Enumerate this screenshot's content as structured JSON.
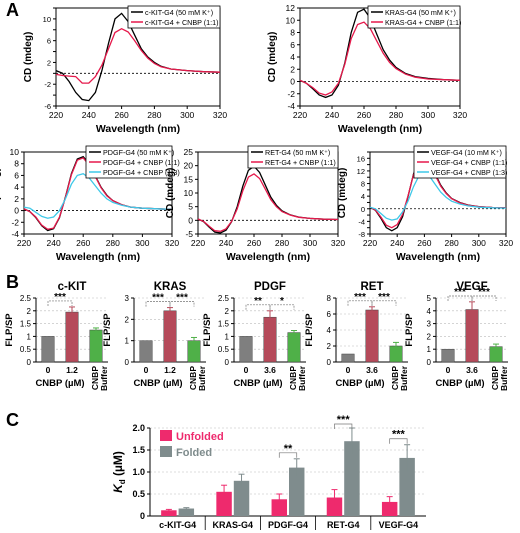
{
  "panel_labels": {
    "a": "A",
    "b": "B",
    "c": "C"
  },
  "colors": {
    "black": "#000000",
    "red": "#e6194b",
    "cyan": "#3ec8e8",
    "bar_dark_grey": "#7f7f7f",
    "bar_red": "#b54a5a",
    "bar_green": "#4fb048",
    "unfolded": "#ee2a6d",
    "folded": "#7f8c8d"
  },
  "chart_data": [
    {
      "type": "line",
      "panel": "A",
      "xlabel": "Wavelength (nm)",
      "ylabel": "CD (mdeg)",
      "xlim": [
        220,
        320
      ],
      "ylim": [
        -6,
        12
      ],
      "xticks": [
        220,
        240,
        260,
        280,
        300,
        320
      ],
      "yticks": [
        -6,
        -4,
        -2,
        0,
        2,
        4,
        6,
        8,
        10,
        12
      ],
      "series": [
        {
          "name": "c-KIT-G4 (50 mM K⁺)",
          "color": "black",
          "x": [
            220,
            224,
            228,
            232,
            236,
            240,
            244,
            248,
            252,
            256,
            260,
            264,
            268,
            272,
            276,
            280,
            284,
            290,
            300,
            310,
            320
          ],
          "y": [
            0.5,
            0,
            -1.5,
            -3.5,
            -4.8,
            -5.0,
            -3.5,
            0.5,
            5.5,
            10,
            11,
            9.5,
            7,
            4.5,
            3,
            2,
            1.3,
            0.8,
            0.5,
            0.3,
            0.2
          ]
        },
        {
          "name": "c-KIT-G4 + CNBP (1:1)",
          "color": "red",
          "x": [
            220,
            224,
            228,
            232,
            236,
            240,
            244,
            248,
            252,
            256,
            260,
            264,
            268,
            272,
            276,
            280,
            284,
            290,
            300,
            310,
            320
          ],
          "y": [
            -0.2,
            -0.4,
            -0.5,
            -0.6,
            -1.8,
            -1.8,
            -0.6,
            1.5,
            4.5,
            7.5,
            8.2,
            7.6,
            6,
            4.2,
            2.8,
            1.8,
            1.2,
            0.8,
            0.5,
            0.3,
            0.2
          ]
        }
      ]
    },
    {
      "type": "line",
      "panel": "A",
      "xlabel": "Wavelength (nm)",
      "ylabel": "CD (mdeg)",
      "xlim": [
        220,
        320
      ],
      "ylim": [
        -4,
        12
      ],
      "xticks": [
        220,
        240,
        260,
        280,
        300,
        320
      ],
      "yticks": [
        -4,
        -2,
        0,
        2,
        4,
        6,
        8,
        10,
        12
      ],
      "series": [
        {
          "name": "KRAS-G4 (50 mM K⁺)",
          "color": "black",
          "x": [
            220,
            224,
            228,
            232,
            236,
            240,
            244,
            248,
            252,
            256,
            260,
            264,
            268,
            272,
            276,
            280,
            286,
            292,
            300,
            310,
            320
          ],
          "y": [
            0.2,
            -0.3,
            -1.2,
            -2.2,
            -2.6,
            -2.2,
            -0.6,
            3,
            8,
            11.3,
            11.8,
            10.3,
            7.7,
            5.2,
            3.5,
            2.3,
            1.3,
            0.8,
            0.5,
            0.3,
            0.2
          ]
        },
        {
          "name": "KRAS-G4 + CNBP (1:1)",
          "color": "red",
          "x": [
            220,
            224,
            228,
            232,
            236,
            240,
            244,
            248,
            252,
            256,
            260,
            264,
            268,
            272,
            276,
            280,
            286,
            292,
            300,
            310,
            320
          ],
          "y": [
            0.2,
            -0.3,
            -1,
            -1.9,
            -2.2,
            -1.7,
            -0.3,
            2.8,
            7,
            9.3,
            9.7,
            8.6,
            6.6,
            4.6,
            3.1,
            2.1,
            1.2,
            0.7,
            0.4,
            0.3,
            0.2
          ]
        }
      ]
    },
    {
      "type": "line",
      "panel": "A",
      "xlabel": "Wavelength (nm)",
      "ylabel": "CD (mdeg)",
      "xlim": [
        220,
        320
      ],
      "ylim": [
        -4,
        10
      ],
      "xticks": [
        220,
        240,
        260,
        280,
        300,
        320
      ],
      "yticks": [
        -4,
        -2,
        0,
        2,
        4,
        6,
        8,
        10
      ],
      "series": [
        {
          "name": "PDGF-G4 (50 mM K⁺)",
          "color": "black",
          "x": [
            220,
            224,
            228,
            232,
            236,
            240,
            244,
            248,
            252,
            256,
            260,
            264,
            268,
            272,
            276,
            280,
            286,
            292,
            300,
            310,
            320
          ],
          "y": [
            0.3,
            -0.2,
            -1.2,
            -2.6,
            -3.4,
            -3.1,
            -1.2,
            2.3,
            6.3,
            8.8,
            9.2,
            8,
            6,
            4,
            2.6,
            1.7,
            1,
            0.6,
            0.4,
            0.3,
            0.2
          ]
        },
        {
          "name": "PDGF-G4 + CNBP (1:1)",
          "color": "red",
          "x": [
            220,
            224,
            228,
            232,
            236,
            240,
            244,
            248,
            252,
            256,
            260,
            264,
            268,
            272,
            276,
            280,
            286,
            292,
            300,
            310,
            320
          ],
          "y": [
            0.3,
            -0.2,
            -1.1,
            -2.5,
            -3.2,
            -3,
            -1.1,
            2.2,
            6.1,
            8.6,
            9,
            7.8,
            5.9,
            3.9,
            2.5,
            1.7,
            1,
            0.6,
            0.4,
            0.3,
            0.2
          ]
        },
        {
          "name": "PDGF-G4 + CNBP (1:3)",
          "color": "cyan",
          "x": [
            220,
            224,
            228,
            232,
            236,
            240,
            244,
            248,
            252,
            256,
            260,
            264,
            268,
            272,
            276,
            280,
            286,
            292,
            300,
            310,
            320
          ],
          "y": [
            0.6,
            0.4,
            -0.3,
            -1,
            -1.3,
            -1.1,
            0,
            2,
            4.5,
            6,
            6.3,
            5.6,
            4.3,
            3,
            2,
            1.4,
            0.9,
            0.6,
            0.4,
            0.3,
            0.2
          ]
        }
      ]
    },
    {
      "type": "line",
      "panel": "A",
      "xlabel": "Wavelength (nm)",
      "ylabel": "CD (mdeg)",
      "xlim": [
        220,
        320
      ],
      "ylim": [
        -5,
        25
      ],
      "xticks": [
        220,
        240,
        260,
        280,
        300,
        320
      ],
      "yticks": [
        -5,
        0,
        5,
        10,
        15,
        20,
        25
      ],
      "series": [
        {
          "name": "RET-G4 (50 mM K⁺)",
          "color": "black",
          "x": [
            220,
            224,
            228,
            232,
            236,
            240,
            244,
            248,
            252,
            256,
            260,
            264,
            268,
            272,
            276,
            280,
            286,
            292,
            300,
            310,
            320
          ],
          "y": [
            0.5,
            -0.5,
            -2.5,
            -4.3,
            -4.6,
            -3.6,
            -0.5,
            5,
            12.5,
            18.3,
            19.8,
            17.5,
            13,
            8.5,
            5.5,
            3.5,
            2,
            1.2,
            0.7,
            0.4,
            0.3
          ]
        },
        {
          "name": "RET-G4 + CNBP (1:1)",
          "color": "red",
          "x": [
            220,
            224,
            228,
            232,
            236,
            240,
            244,
            248,
            252,
            256,
            260,
            264,
            268,
            272,
            276,
            280,
            286,
            292,
            300,
            310,
            320
          ],
          "y": [
            0.5,
            -0.4,
            -2.2,
            -3.8,
            -4,
            -3.1,
            -0.4,
            4.2,
            10.8,
            15.8,
            17,
            15.3,
            11.5,
            7.6,
            5,
            3.2,
            1.9,
            1.1,
            0.7,
            0.4,
            0.3
          ]
        }
      ]
    },
    {
      "type": "line",
      "panel": "A",
      "xlabel": "Wavelength (nm)",
      "ylabel": "CD (mdeg)",
      "xlim": [
        220,
        320
      ],
      "ylim": [
        -8,
        18
      ],
      "xticks": [
        220,
        240,
        260,
        280,
        300,
        320
      ],
      "yticks": [
        -8,
        -6,
        -4,
        -2,
        0,
        2,
        4,
        6,
        8,
        10,
        12,
        14,
        16,
        18
      ],
      "series": [
        {
          "name": "VEGF-G4 (10 mM K⁺)",
          "color": "black",
          "x": [
            220,
            224,
            228,
            232,
            236,
            240,
            244,
            248,
            252,
            256,
            260,
            264,
            268,
            272,
            276,
            280,
            286,
            292,
            300,
            310,
            320
          ],
          "y": [
            0.5,
            -0.5,
            -3,
            -6,
            -7,
            -6,
            -2.5,
            4,
            11,
            15.5,
            16.5,
            14.5,
            11,
            7.5,
            5,
            3.3,
            2,
            1.2,
            0.7,
            0.4,
            0.3
          ]
        },
        {
          "name": "VEGF-G4 + CNBP (1:1)",
          "color": "red",
          "x": [
            220,
            224,
            228,
            232,
            236,
            240,
            244,
            248,
            252,
            256,
            260,
            264,
            268,
            272,
            276,
            280,
            286,
            292,
            300,
            310,
            320
          ],
          "y": [
            0.5,
            -0.4,
            -2.6,
            -5.2,
            -6,
            -5,
            -1.8,
            4.2,
            10.8,
            15,
            16,
            14,
            10.6,
            7.2,
            4.8,
            3.2,
            1.9,
            1.1,
            0.7,
            0.4,
            0.3
          ]
        },
        {
          "name": "VEGF-G4 + CNBP (1:3)",
          "color": "cyan",
          "x": [
            220,
            224,
            228,
            232,
            236,
            240,
            244,
            248,
            252,
            256,
            260,
            264,
            268,
            272,
            276,
            280,
            286,
            292,
            300,
            310,
            320
          ],
          "y": [
            0.5,
            0,
            -1.5,
            -3,
            -3.6,
            -3.2,
            -1,
            2.5,
            7,
            10.5,
            11.5,
            10.2,
            7.7,
            5.3,
            3.6,
            2.4,
            1.5,
            0.9,
            0.5,
            0.3,
            0.2
          ]
        }
      ]
    },
    {
      "type": "bar",
      "panel": "B",
      "title": "c-KIT",
      "ylabel": "FLP/SP",
      "xlabel": "CNBP (µM)",
      "ylim": [
        0,
        2.5
      ],
      "yticks": [
        0,
        0.5,
        1,
        1.5,
        2,
        2.5
      ],
      "yticklabels": [
        "0",
        "0.5",
        "1",
        "1.5",
        "2",
        "2.5"
      ],
      "categories": [
        "0",
        "1.2",
        "CNBP Buffer"
      ],
      "values": [
        1.0,
        1.95,
        1.25
      ],
      "errors": [
        0,
        0.2,
        0.08
      ],
      "bar_colors": [
        "bar_dark_grey",
        "bar_red",
        "bar_green"
      ],
      "significance": [
        {
          "from": 0,
          "to": 1,
          "label": "***"
        }
      ]
    },
    {
      "type": "bar",
      "panel": "B",
      "title": "KRAS",
      "ylabel": "FLP/SP",
      "xlabel": "CNBP (µM)",
      "ylim": [
        0,
        3
      ],
      "yticks": [
        0,
        1,
        2,
        3
      ],
      "yticklabels": [
        "0",
        "1",
        "2",
        "3"
      ],
      "categories": [
        "0",
        "1.2",
        "CNBP Buffer"
      ],
      "values": [
        1.0,
        2.4,
        1.0
      ],
      "errors": [
        0,
        0.15,
        0.15
      ],
      "bar_colors": [
        "bar_dark_grey",
        "bar_red",
        "bar_green"
      ],
      "significance": [
        {
          "from": 0,
          "to": 1,
          "label": "***"
        },
        {
          "from": 1,
          "to": 2,
          "label": "***"
        }
      ]
    },
    {
      "type": "bar",
      "panel": "B",
      "title": "PDGF",
      "ylabel": "FLP/SP",
      "xlabel": "CNBP (µM)",
      "ylim": [
        0,
        2.5
      ],
      "yticks": [
        0,
        0.5,
        1,
        1.5,
        2,
        2.5
      ],
      "yticklabels": [
        "0",
        "0.5",
        "1",
        "1.5",
        "2",
        "2.5"
      ],
      "categories": [
        "0",
        "3.6",
        "CNBP Buffer"
      ],
      "values": [
        1.0,
        1.75,
        1.15
      ],
      "errors": [
        0,
        0.25,
        0.08
      ],
      "bar_colors": [
        "bar_dark_grey",
        "bar_red",
        "bar_green"
      ],
      "significance": [
        {
          "from": 0,
          "to": 1,
          "label": "**"
        },
        {
          "from": 1,
          "to": 2,
          "label": "*"
        }
      ]
    },
    {
      "type": "bar",
      "panel": "B",
      "title": "RET",
      "ylabel": "FLP/SP",
      "xlabel": "CNBP (µM)",
      "ylim": [
        0,
        8
      ],
      "yticks": [
        0,
        2,
        4,
        6,
        8
      ],
      "yticklabels": [
        "0",
        "2",
        "4",
        "6",
        "8"
      ],
      "categories": [
        "0",
        "3.6",
        "CNBP Buffer"
      ],
      "values": [
        1.0,
        6.5,
        2.0
      ],
      "errors": [
        0,
        0.4,
        0.45
      ],
      "bar_colors": [
        "bar_dark_grey",
        "bar_red",
        "bar_green"
      ],
      "significance": [
        {
          "from": 0,
          "to": 1,
          "label": "***"
        },
        {
          "from": 1,
          "to": 2,
          "label": "***"
        }
      ]
    },
    {
      "type": "bar",
      "panel": "B",
      "title": "VEGF",
      "ylabel": "FLP/SP",
      "xlabel": "CNBP (µM)",
      "ylim": [
        0,
        5
      ],
      "yticks": [
        0,
        1,
        2,
        3,
        4,
        5
      ],
      "yticklabels": [
        "0",
        "1",
        "2",
        "3",
        "4",
        "5"
      ],
      "categories": [
        "0",
        "3.6",
        "CNBP Buffer"
      ],
      "values": [
        1.0,
        4.1,
        1.2
      ],
      "errors": [
        0,
        0.6,
        0.2
      ],
      "bar_colors": [
        "bar_dark_grey",
        "bar_red",
        "bar_green"
      ],
      "significance": [
        {
          "from": 0,
          "to": 1,
          "label": "***"
        },
        {
          "from": 1,
          "to": 2,
          "label": "***"
        }
      ]
    },
    {
      "type": "bar",
      "panel": "C",
      "ylabel": "K_d (µM)",
      "ylim": [
        0,
        2.0
      ],
      "yticks": [
        0,
        0.5,
        1.0,
        1.5,
        2.0
      ],
      "yticklabels": [
        "0",
        "0.5",
        "1.0",
        "1.5",
        "2.0"
      ],
      "categories": [
        "c-KIT-G4",
        "KRAS-G4",
        "PDGF-G4",
        "RET-G4",
        "VEGF-G4"
      ],
      "series": [
        {
          "name": "Unfolded",
          "color": "unfolded",
          "values": [
            0.13,
            0.55,
            0.38,
            0.42,
            0.32
          ],
          "errors": [
            0.02,
            0.15,
            0.12,
            0.18,
            0.12
          ]
        },
        {
          "name": "Folded",
          "color": "folded",
          "values": [
            0.17,
            0.8,
            1.1,
            1.7,
            1.32
          ],
          "errors": [
            0.02,
            0.15,
            0.2,
            0.3,
            0.3
          ]
        }
      ],
      "significance": [
        {
          "category": 2,
          "label": "**"
        },
        {
          "category": 3,
          "label": "***"
        },
        {
          "category": 4,
          "label": "***"
        }
      ]
    }
  ]
}
